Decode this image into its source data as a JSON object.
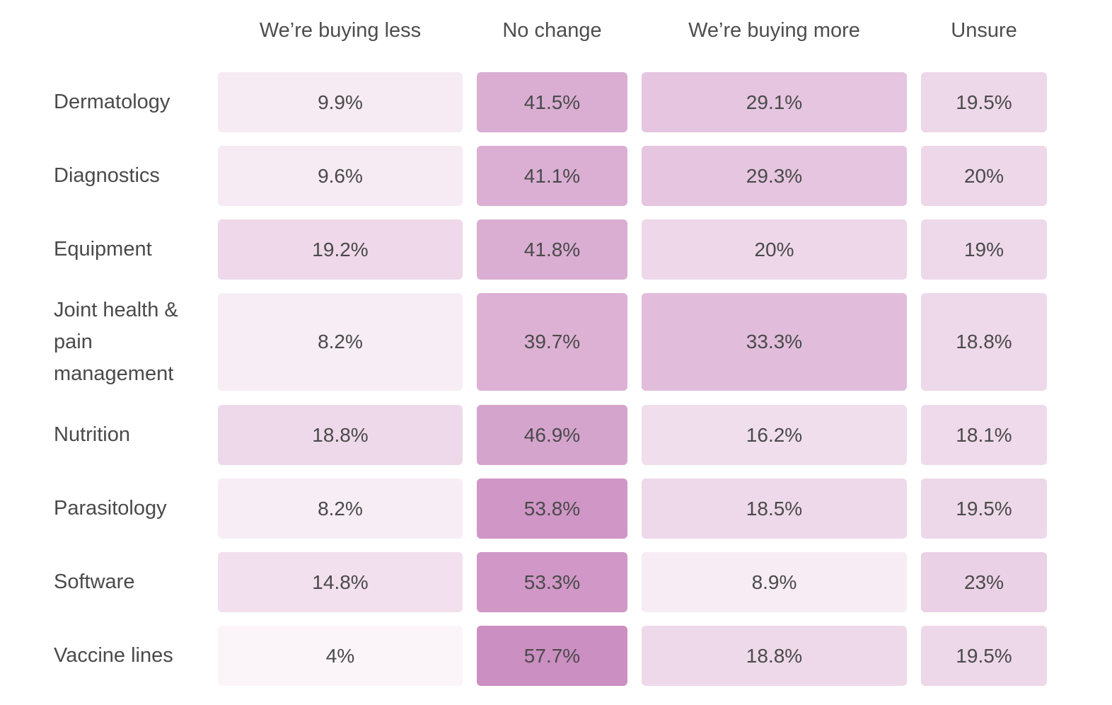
{
  "chart_data": {
    "type": "heatmap",
    "title": "",
    "xlabel": "",
    "ylabel": "",
    "columns": [
      "We’re buying less",
      "No change",
      "We’re buying more",
      "Unsure"
    ],
    "rows": [
      "Dermatology",
      "Diagnostics",
      "Equipment",
      "Joint health & pain management",
      "Nutrition",
      "Parasitology",
      "Software",
      "Vaccine lines"
    ],
    "values": [
      [
        9.9,
        41.5,
        29.1,
        19.5
      ],
      [
        9.6,
        41.1,
        29.3,
        20
      ],
      [
        19.2,
        41.8,
        20,
        19
      ],
      [
        8.2,
        39.7,
        33.3,
        18.8
      ],
      [
        18.8,
        46.9,
        16.2,
        18.1
      ],
      [
        8.2,
        53.8,
        18.5,
        19.5
      ],
      [
        14.8,
        53.3,
        8.9,
        23
      ],
      [
        4,
        57.7,
        18.8,
        19.5
      ]
    ],
    "labels": [
      [
        "9.9%",
        "41.5%",
        "29.1%",
        "19.5%"
      ],
      [
        "9.6%",
        "41.1%",
        "29.3%",
        "20%"
      ],
      [
        "19.2%",
        "41.8%",
        "20%",
        "19%"
      ],
      [
        "8.2%",
        "39.7%",
        "33.3%",
        "18.8%"
      ],
      [
        "18.8%",
        "46.9%",
        "16.2%",
        "18.1%"
      ],
      [
        "8.2%",
        "53.8%",
        "18.5%",
        "19.5%"
      ],
      [
        "14.8%",
        "53.3%",
        "8.9%",
        "23%"
      ],
      [
        "4%",
        "57.7%",
        "18.8%",
        "19.5%"
      ]
    ],
    "color_scale": {
      "low": "#fbf5f9",
      "high": "#cc8fc2"
    }
  }
}
